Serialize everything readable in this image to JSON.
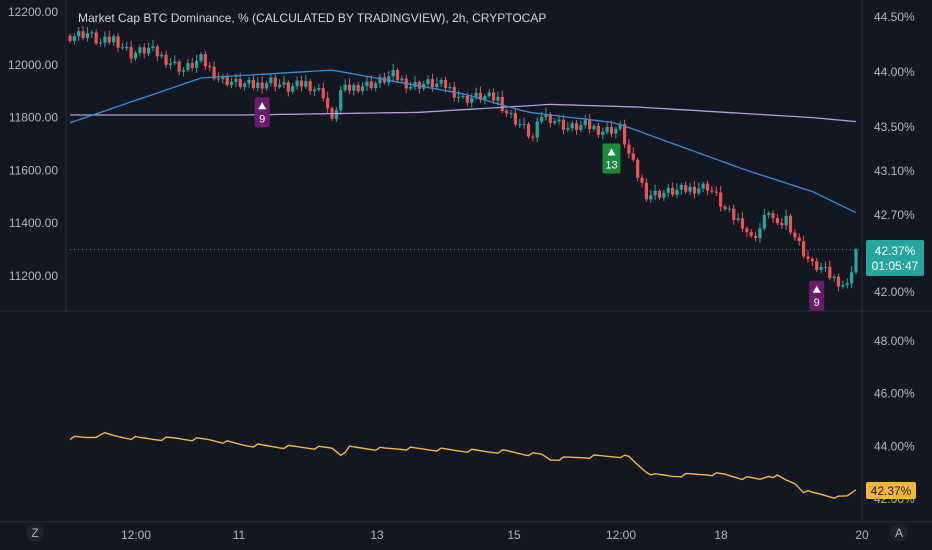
{
  "title": "Market Cap BTC Dominance, % (CALCULATED BY TRADINGVIEW), 2h, CRYPTOCAP",
  "corner": {
    "left": "Z",
    "right": "A"
  },
  "colors": {
    "background": "#131722",
    "up": "#26a69a",
    "down": "#ef5350",
    "ma_fast": "#2f8fd8",
    "ma_slow": "#b39ddb",
    "oscillator": "#f7b733",
    "seq_purple": "#6a1b6a",
    "seq_green": "#1b8a3a",
    "last_price": "#26a69a"
  },
  "chart_data": [
    {
      "type": "candlestick",
      "name": "main",
      "ylim_left": [
        11100,
        12250
      ],
      "ylim_right": [
        41.8,
        44.6
      ],
      "left_ticks": [
        "12200.00",
        "12000.00",
        "11800.00",
        "11600.00",
        "11400.00",
        "11200.00"
      ],
      "right_ticks": [
        "44.50%",
        "44.00%",
        "43.50%",
        "43.10%",
        "42.70%",
        "42.00%"
      ],
      "x_ticks": [
        "12:00",
        "11",
        "13",
        "15",
        "12:00",
        "18",
        "20"
      ],
      "close_path": [
        [
          0,
          12110
        ],
        [
          4,
          12120
        ],
        [
          7,
          12080
        ],
        [
          10,
          12100
        ],
        [
          14,
          12040
        ],
        [
          18,
          12060
        ],
        [
          22,
          12020
        ],
        [
          26,
          11980
        ],
        [
          30,
          12020
        ],
        [
          34,
          11950
        ],
        [
          38,
          11930
        ],
        [
          42,
          11920
        ],
        [
          46,
          11940
        ],
        [
          50,
          11910
        ],
        [
          54,
          11930
        ],
        [
          58,
          11890
        ],
        [
          60,
          11780
        ],
        [
          62,
          11900
        ],
        [
          66,
          11920
        ],
        [
          70,
          11930
        ],
        [
          74,
          11960
        ],
        [
          78,
          11920
        ],
        [
          82,
          11930
        ],
        [
          86,
          11920
        ],
        [
          90,
          11870
        ],
        [
          94,
          11880
        ],
        [
          98,
          11870
        ],
        [
          100,
          11820
        ],
        [
          104,
          11760
        ],
        [
          106,
          11720
        ],
        [
          108,
          11810
        ],
        [
          110,
          11800
        ],
        [
          114,
          11760
        ],
        [
          118,
          11770
        ],
        [
          122,
          11750
        ],
        [
          126,
          11760
        ],
        [
          128,
          11660
        ],
        [
          130,
          11580
        ],
        [
          132,
          11510
        ],
        [
          134,
          11510
        ],
        [
          138,
          11520
        ],
        [
          142,
          11530
        ],
        [
          146,
          11540
        ],
        [
          148,
          11500
        ],
        [
          150,
          11450
        ],
        [
          152,
          11420
        ],
        [
          154,
          11400
        ],
        [
          156,
          11340
        ],
        [
          158,
          11380
        ],
        [
          160,
          11450
        ],
        [
          162,
          11380
        ],
        [
          164,
          11420
        ],
        [
          166,
          11350
        ],
        [
          168,
          11290
        ],
        [
          170,
          11240
        ],
        [
          172,
          11230
        ],
        [
          174,
          11200
        ],
        [
          176,
          11180
        ],
        [
          178,
          11160
        ],
        [
          180,
          11300
        ]
      ],
      "ma_fast": [
        [
          0,
          11780
        ],
        [
          30,
          11950
        ],
        [
          60,
          11980
        ],
        [
          90,
          11890
        ],
        [
          105,
          11820
        ],
        [
          125,
          11780
        ],
        [
          140,
          11690
        ],
        [
          155,
          11600
        ],
        [
          170,
          11520
        ],
        [
          180,
          11440
        ]
      ],
      "ma_slow": [
        [
          0,
          11810
        ],
        [
          40,
          11810
        ],
        [
          80,
          11820
        ],
        [
          110,
          11850
        ],
        [
          130,
          11840
        ],
        [
          150,
          11820
        ],
        [
          170,
          11800
        ],
        [
          180,
          11785
        ]
      ],
      "last_value": "42.37%",
      "countdown": "01:05:47",
      "sequential_labels": [
        {
          "index": 44,
          "text": "9",
          "kind": "purple"
        },
        {
          "index": 124,
          "text": "13",
          "kind": "green"
        },
        {
          "index": 171,
          "text": "9",
          "kind": "purple"
        }
      ]
    },
    {
      "type": "line",
      "name": "oscillator",
      "ylim": [
        41.5,
        49.0
      ],
      "right_ticks": [
        "48.00%",
        "46.00%",
        "44.00%",
        "42.00%"
      ],
      "last_value": "42.37%",
      "points": [
        [
          0,
          44.32
        ],
        [
          4,
          44.33
        ],
        [
          6,
          44.38
        ],
        [
          7,
          44.5
        ],
        [
          9,
          44.42
        ],
        [
          12,
          44.35
        ],
        [
          16,
          44.3
        ],
        [
          20,
          44.28
        ],
        [
          24,
          44.3
        ],
        [
          28,
          44.27
        ],
        [
          32,
          44.25
        ],
        [
          36,
          44.15
        ],
        [
          40,
          44.05
        ],
        [
          44,
          44.02
        ],
        [
          48,
          43.98
        ],
        [
          52,
          43.97
        ],
        [
          56,
          43.95
        ],
        [
          60,
          43.93
        ],
        [
          62,
          43.7
        ],
        [
          64,
          43.95
        ],
        [
          68,
          43.92
        ],
        [
          72,
          43.9
        ],
        [
          76,
          43.92
        ],
        [
          80,
          43.9
        ],
        [
          84,
          43.88
        ],
        [
          88,
          43.85
        ],
        [
          92,
          43.83
        ],
        [
          96,
          43.8
        ],
        [
          100,
          43.8
        ],
        [
          104,
          43.72
        ],
        [
          108,
          43.68
        ],
        [
          110,
          43.5
        ],
        [
          114,
          43.55
        ],
        [
          118,
          43.6
        ],
        [
          122,
          43.62
        ],
        [
          126,
          43.63
        ],
        [
          128,
          43.58
        ],
        [
          130,
          43.3
        ],
        [
          132,
          43.05
        ],
        [
          134,
          42.9
        ],
        [
          138,
          42.88
        ],
        [
          142,
          42.92
        ],
        [
          146,
          42.95
        ],
        [
          150,
          42.92
        ],
        [
          154,
          42.8
        ],
        [
          158,
          42.75
        ],
        [
          160,
          42.9
        ],
        [
          162,
          42.85
        ],
        [
          164,
          42.7
        ],
        [
          166,
          42.6
        ],
        [
          168,
          42.3
        ],
        [
          170,
          42.22
        ],
        [
          172,
          42.18
        ],
        [
          174,
          42.12
        ],
        [
          176,
          42.05
        ],
        [
          178,
          42.1
        ],
        [
          180,
          42.37
        ]
      ]
    }
  ]
}
